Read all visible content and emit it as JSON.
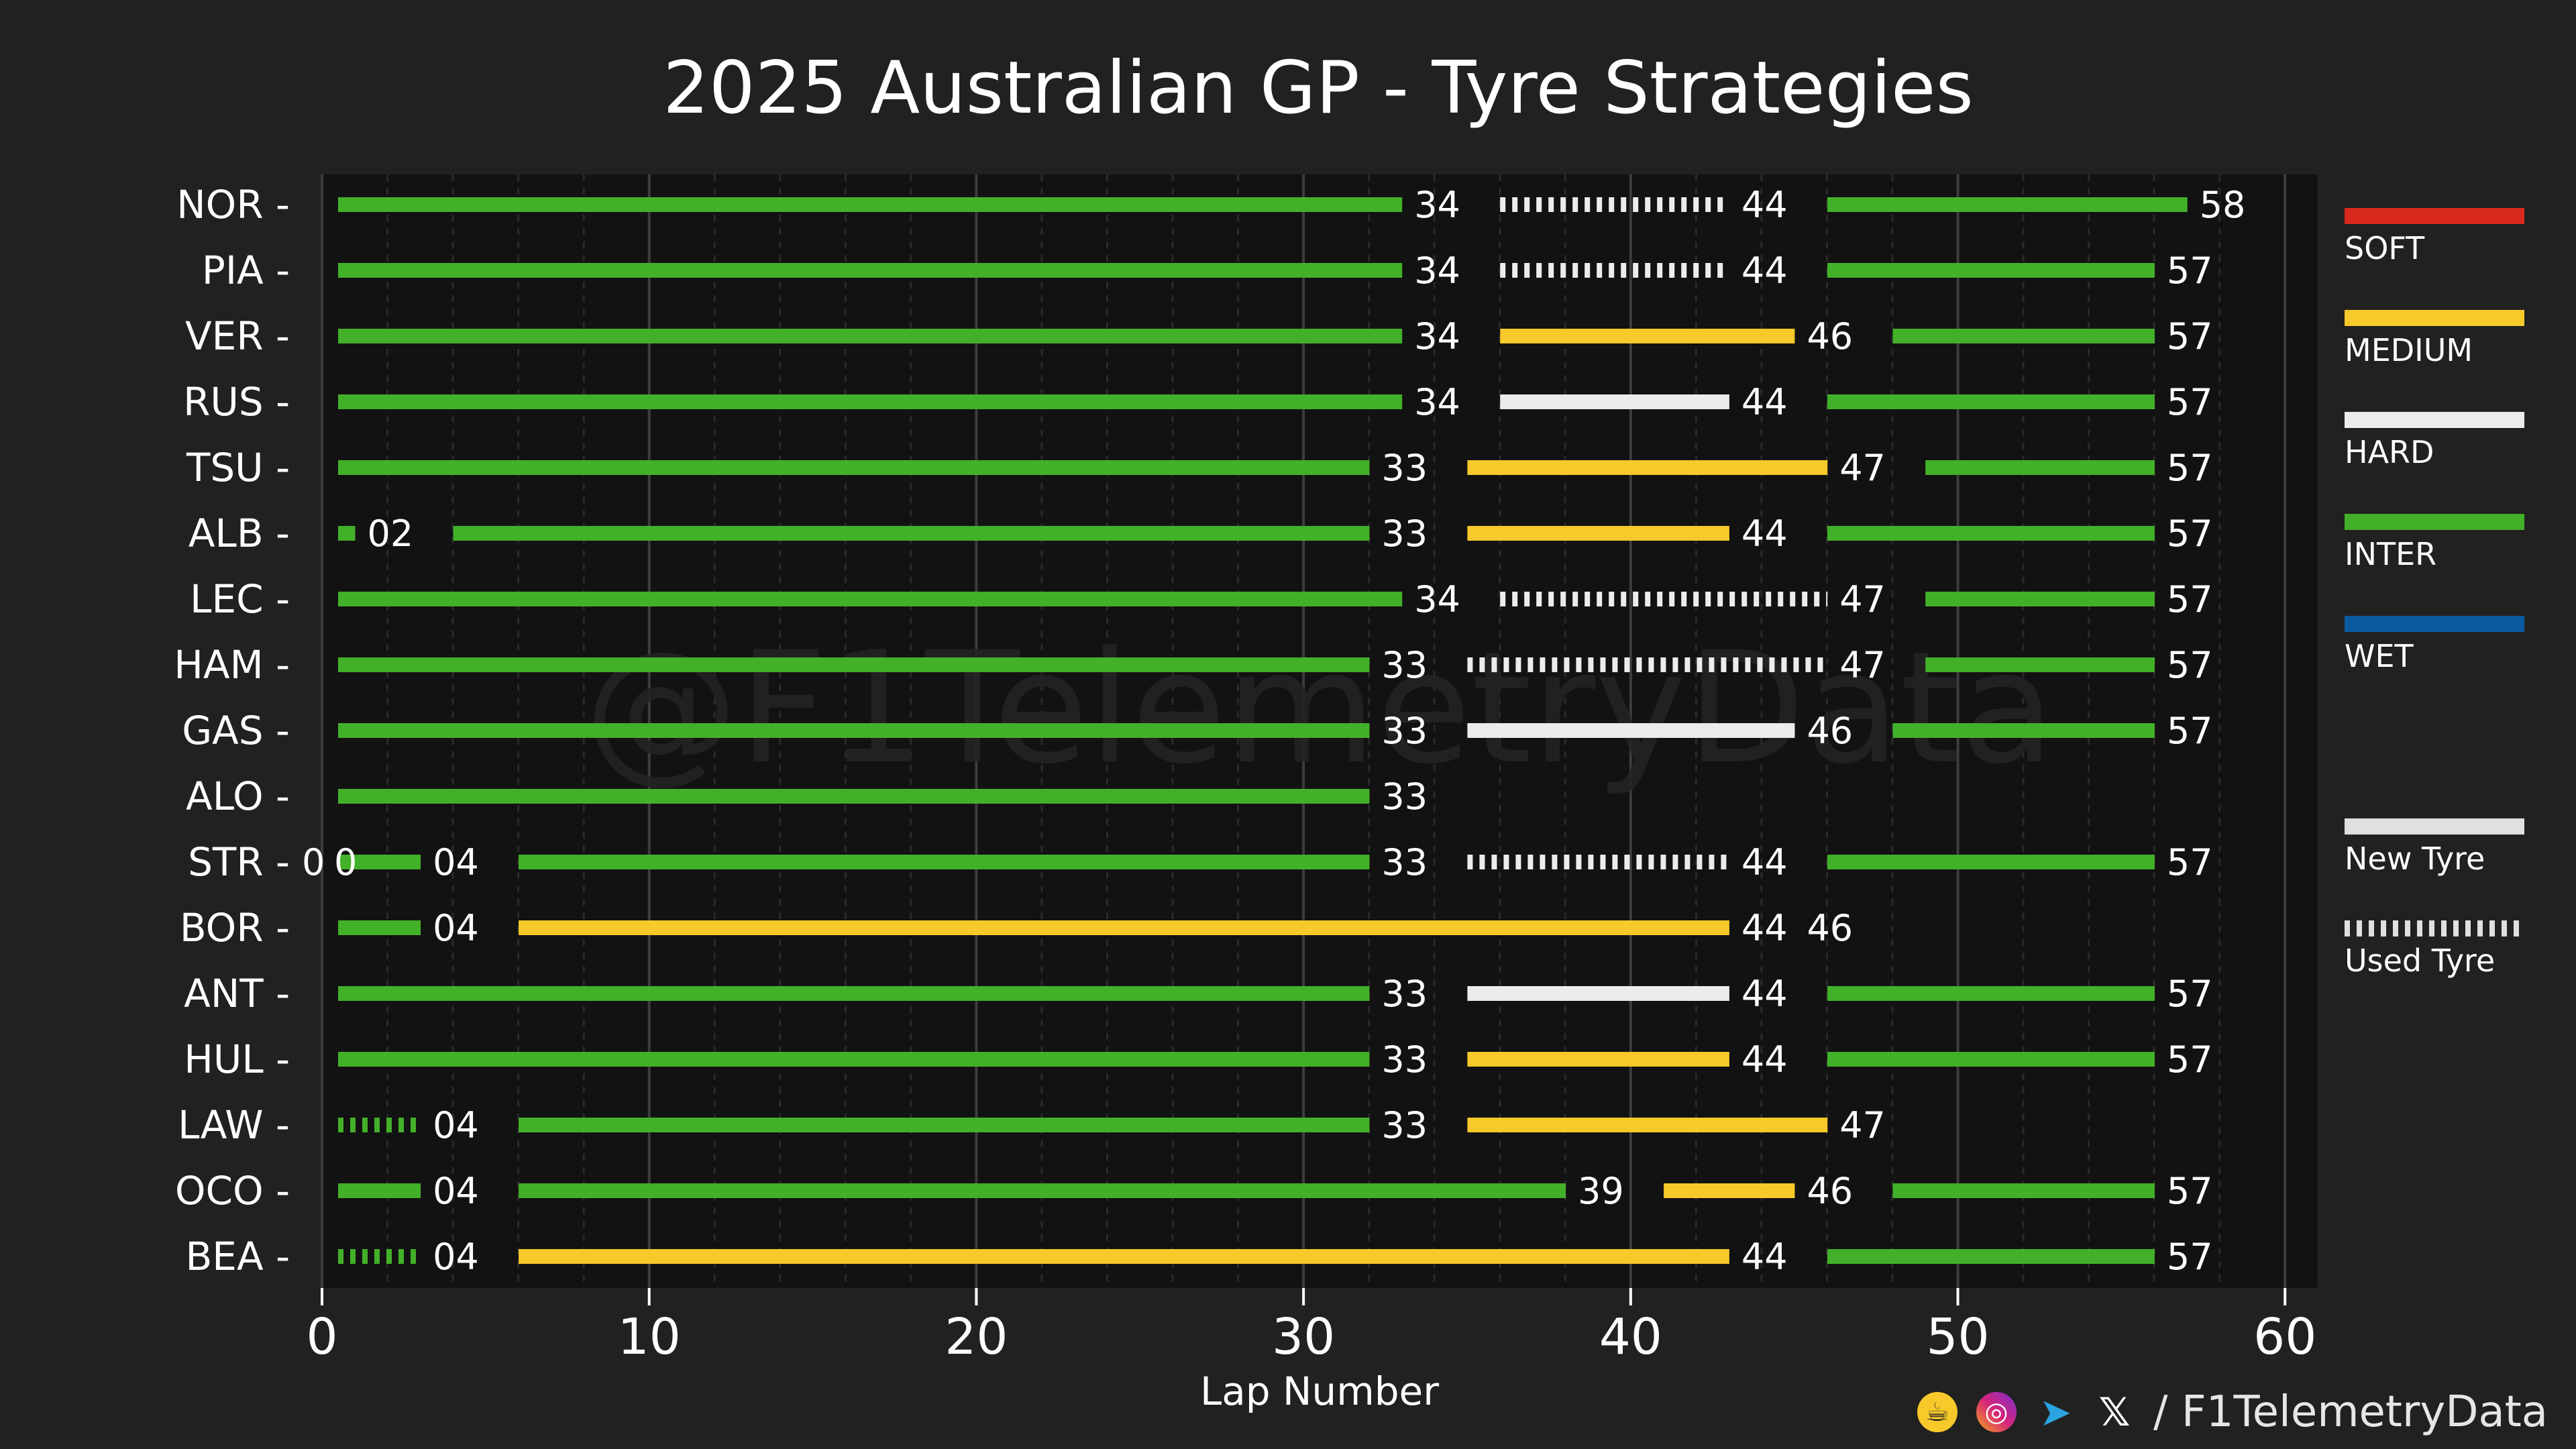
{
  "chart_data": {
    "type": "bar",
    "title": "2025 Australian GP - Tyre Strategies",
    "xlabel": "Lap Number",
    "ylabel": "",
    "xlim": [
      0,
      61
    ],
    "xticks": [
      0,
      10,
      20,
      30,
      40,
      50,
      60
    ],
    "grid": true,
    "watermark": "@F1TelemetryData",
    "compound_colors": {
      "SOFT": "#d9281e",
      "MEDIUM": "#f7c92a",
      "HARD": "#ececec",
      "INTER": "#43b02a",
      "WET": "#0a5aa0"
    },
    "legend": {
      "compounds": [
        "SOFT",
        "MEDIUM",
        "HARD",
        "INTER",
        "WET"
      ],
      "new_label": "New Tyre",
      "used_label": "Used Tyre"
    },
    "drivers": [
      {
        "driver": "NOR",
        "stints": [
          {
            "compound": "INTER",
            "start": 0,
            "end": 34,
            "label": "34",
            "new": true
          },
          {
            "compound": "HARD",
            "start": 34,
            "end": 44,
            "label": "44",
            "new": false
          },
          {
            "compound": "INTER",
            "start": 44,
            "end": 58,
            "label": "58",
            "new": true
          }
        ]
      },
      {
        "driver": "PIA",
        "stints": [
          {
            "compound": "INTER",
            "start": 0,
            "end": 34,
            "label": "34",
            "new": true
          },
          {
            "compound": "HARD",
            "start": 34,
            "end": 44,
            "label": "44",
            "new": false
          },
          {
            "compound": "INTER",
            "start": 44,
            "end": 57,
            "label": "57",
            "new": true
          }
        ]
      },
      {
        "driver": "VER",
        "stints": [
          {
            "compound": "INTER",
            "start": 0,
            "end": 34,
            "label": "34",
            "new": true
          },
          {
            "compound": "MEDIUM",
            "start": 34,
            "end": 46,
            "label": "46",
            "new": true
          },
          {
            "compound": "INTER",
            "start": 46,
            "end": 57,
            "label": "57",
            "new": true
          }
        ]
      },
      {
        "driver": "RUS",
        "stints": [
          {
            "compound": "INTER",
            "start": 0,
            "end": 34,
            "label": "34",
            "new": true
          },
          {
            "compound": "HARD",
            "start": 34,
            "end": 44,
            "label": "44",
            "new": true
          },
          {
            "compound": "INTER",
            "start": 44,
            "end": 57,
            "label": "57",
            "new": true
          }
        ]
      },
      {
        "driver": "TSU",
        "stints": [
          {
            "compound": "INTER",
            "start": 0,
            "end": 33,
            "label": "33",
            "new": true
          },
          {
            "compound": "MEDIUM",
            "start": 33,
            "end": 47,
            "label": "47",
            "new": true
          },
          {
            "compound": "INTER",
            "start": 47,
            "end": 57,
            "label": "57",
            "new": true
          }
        ]
      },
      {
        "driver": "ALB",
        "stints": [
          {
            "compound": "INTER",
            "start": 0,
            "end": 2,
            "label": "02",
            "new": true
          },
          {
            "compound": "INTER",
            "start": 2,
            "end": 33,
            "label": "33",
            "new": true
          },
          {
            "compound": "MEDIUM",
            "start": 33,
            "end": 44,
            "label": "44",
            "new": true
          },
          {
            "compound": "INTER",
            "start": 44,
            "end": 57,
            "label": "57",
            "new": true
          }
        ]
      },
      {
        "driver": "LEC",
        "stints": [
          {
            "compound": "INTER",
            "start": 0,
            "end": 34,
            "label": "34",
            "new": true
          },
          {
            "compound": "HARD",
            "start": 34,
            "end": 47,
            "label": "47",
            "new": false
          },
          {
            "compound": "INTER",
            "start": 47,
            "end": 57,
            "label": "57",
            "new": true
          }
        ]
      },
      {
        "driver": "HAM",
        "stints": [
          {
            "compound": "INTER",
            "start": 0,
            "end": 33,
            "label": "33",
            "new": true
          },
          {
            "compound": "HARD",
            "start": 33,
            "end": 47,
            "label": "47",
            "new": false
          },
          {
            "compound": "INTER",
            "start": 47,
            "end": 57,
            "label": "57",
            "new": true
          }
        ]
      },
      {
        "driver": "GAS",
        "stints": [
          {
            "compound": "INTER",
            "start": 0,
            "end": 33,
            "label": "33",
            "new": true
          },
          {
            "compound": "HARD",
            "start": 33,
            "end": 46,
            "label": "46",
            "new": true
          },
          {
            "compound": "INTER",
            "start": 46,
            "end": 57,
            "label": "57",
            "new": true
          }
        ]
      },
      {
        "driver": "ALO",
        "stints": [
          {
            "compound": "INTER",
            "start": 0,
            "end": 33,
            "label": "33",
            "new": true
          }
        ]
      },
      {
        "driver": "STR",
        "stints": [
          {
            "compound": "INTER",
            "start": 0,
            "end": 0,
            "label": "0",
            "new": true
          },
          {
            "compound": "INTER",
            "start": 0,
            "end": 0,
            "label": "0",
            "new": true
          },
          {
            "compound": "INTER",
            "start": 0,
            "end": 4,
            "label": "04",
            "new": true
          },
          {
            "compound": "INTER",
            "start": 4,
            "end": 33,
            "label": "33",
            "new": true
          },
          {
            "compound": "HARD",
            "start": 33,
            "end": 44,
            "label": "44",
            "new": false
          },
          {
            "compound": "INTER",
            "start": 44,
            "end": 57,
            "label": "57",
            "new": true
          }
        ]
      },
      {
        "driver": "BOR",
        "stints": [
          {
            "compound": "INTER",
            "start": 0,
            "end": 4,
            "label": "04",
            "new": true
          },
          {
            "compound": "MEDIUM",
            "start": 4,
            "end": 44,
            "label": "44",
            "new": true
          },
          {
            "compound": "INTER",
            "start": 44,
            "end": 46,
            "label": "46",
            "new": true
          }
        ]
      },
      {
        "driver": "ANT",
        "stints": [
          {
            "compound": "INTER",
            "start": 0,
            "end": 33,
            "label": "33",
            "new": true
          },
          {
            "compound": "HARD",
            "start": 33,
            "end": 44,
            "label": "44",
            "new": true
          },
          {
            "compound": "INTER",
            "start": 44,
            "end": 57,
            "label": "57",
            "new": true
          }
        ]
      },
      {
        "driver": "HUL",
        "stints": [
          {
            "compound": "INTER",
            "start": 0,
            "end": 33,
            "label": "33",
            "new": true
          },
          {
            "compound": "MEDIUM",
            "start": 33,
            "end": 44,
            "label": "44",
            "new": true
          },
          {
            "compound": "INTER",
            "start": 44,
            "end": 57,
            "label": "57",
            "new": true
          }
        ]
      },
      {
        "driver": "LAW",
        "stints": [
          {
            "compound": "INTER",
            "start": 0,
            "end": 4,
            "label": "04",
            "new": false
          },
          {
            "compound": "INTER",
            "start": 4,
            "end": 33,
            "label": "33",
            "new": true
          },
          {
            "compound": "MEDIUM",
            "start": 33,
            "end": 47,
            "label": "47",
            "new": true
          }
        ]
      },
      {
        "driver": "OCO",
        "stints": [
          {
            "compound": "INTER",
            "start": 0,
            "end": 4,
            "label": "04",
            "new": true
          },
          {
            "compound": "INTER",
            "start": 4,
            "end": 39,
            "label": "39",
            "new": true
          },
          {
            "compound": "MEDIUM",
            "start": 39,
            "end": 46,
            "label": "46",
            "new": true
          },
          {
            "compound": "INTER",
            "start": 46,
            "end": 57,
            "label": "57",
            "new": true
          }
        ]
      },
      {
        "driver": "BEA",
        "stints": [
          {
            "compound": "INTER",
            "start": 0,
            "end": 4,
            "label": "04",
            "new": false
          },
          {
            "compound": "MEDIUM",
            "start": 4,
            "end": 44,
            "label": "44",
            "new": true
          },
          {
            "compound": "INTER",
            "start": 44,
            "end": 57,
            "label": "57",
            "new": true
          }
        ]
      }
    ]
  },
  "footer": {
    "handle": "/ F1TelemetryData",
    "icons": [
      "buymeacoffee-icon",
      "instagram-icon",
      "telegram-icon",
      "x-icon"
    ]
  }
}
